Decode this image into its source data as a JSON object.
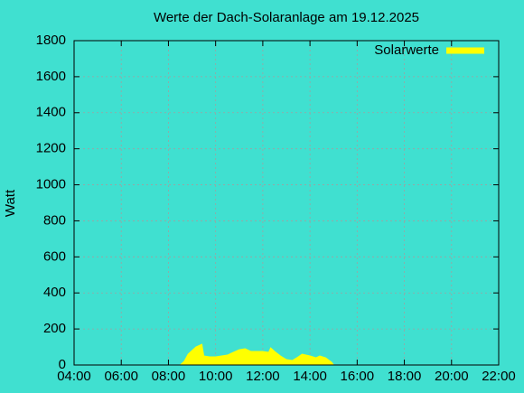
{
  "chart_data": {
    "type": "area",
    "title": "Werte der Dach-Solaranlage am 19.12.2025",
    "y_label": "Watt",
    "x": [
      "08:30",
      "08:40",
      "08:50",
      "09:00",
      "09:10",
      "09:20",
      "09:25",
      "09:30",
      "09:45",
      "10:00",
      "10:30",
      "11:00",
      "11:15",
      "11:30",
      "12:00",
      "12:15",
      "12:20",
      "12:30",
      "12:45",
      "13:00",
      "13:15",
      "13:30",
      "13:40",
      "14:00",
      "14:15",
      "14:25",
      "14:40",
      "14:55",
      "15:00"
    ],
    "series": [
      {
        "name": "Solarwerte",
        "color": "#ffff00",
        "values": [
          0,
          20,
          60,
          80,
          100,
          110,
          115,
          50,
          45,
          45,
          55,
          85,
          90,
          75,
          75,
          70,
          95,
          75,
          50,
          30,
          25,
          45,
          60,
          50,
          40,
          50,
          40,
          15,
          0
        ]
      }
    ],
    "xlim": [
      "04:00",
      "22:00"
    ],
    "xticks": [
      "04:00",
      "06:00",
      "08:00",
      "10:00",
      "12:00",
      "14:00",
      "16:00",
      "18:00",
      "20:00",
      "22:00"
    ],
    "ylim": [
      0,
      1800
    ],
    "yticks": [
      0,
      200,
      400,
      600,
      800,
      1000,
      1200,
      1400,
      1600,
      1800
    ],
    "grid": true,
    "legend": "top-right"
  }
}
